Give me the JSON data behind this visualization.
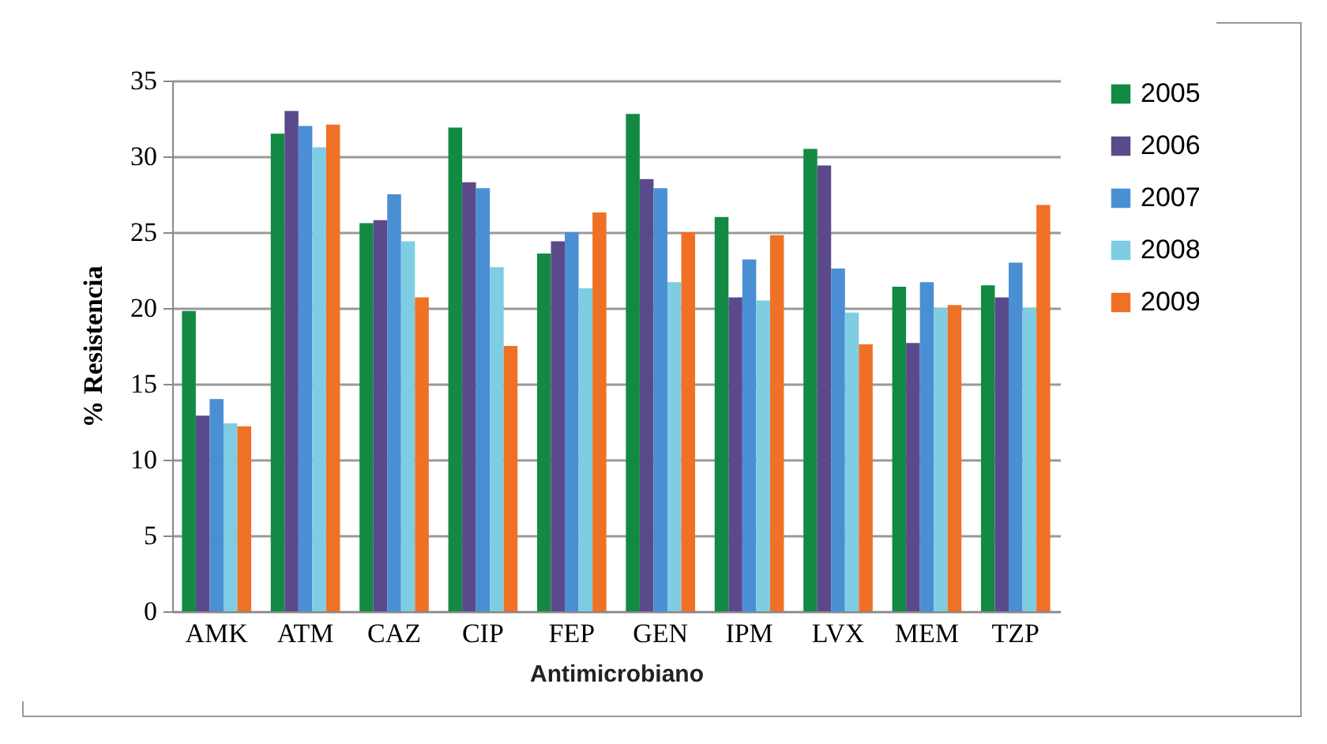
{
  "chart_data": {
    "type": "bar",
    "xlabel": "Antimicrobiano",
    "ylabel": "% Resistencia",
    "categories": [
      "AMK",
      "ATM",
      "CAZ",
      "CIP",
      "FEP",
      "GEN",
      "IPM",
      "LVX",
      "MEM",
      "TZP"
    ],
    "series": [
      {
        "name": "2005",
        "color": "#138a43",
        "values": [
          19.8,
          31.5,
          25.6,
          31.9,
          23.6,
          32.8,
          26.0,
          30.5,
          21.4,
          21.5
        ]
      },
      {
        "name": "2006",
        "color": "#5b4a8b",
        "values": [
          12.9,
          33.0,
          25.8,
          28.3,
          24.4,
          28.5,
          20.7,
          29.4,
          17.7,
          20.7
        ]
      },
      {
        "name": "2007",
        "color": "#4a8fd4",
        "values": [
          14.0,
          32.0,
          27.5,
          27.9,
          25.0,
          27.9,
          23.2,
          22.6,
          21.7,
          23.0
        ]
      },
      {
        "name": "2008",
        "color": "#7fcde3",
        "values": [
          12.4,
          30.6,
          24.4,
          22.7,
          21.3,
          21.7,
          20.5,
          19.7,
          20.0,
          20.0
        ]
      },
      {
        "name": "2009",
        "color": "#ef7125",
        "values": [
          12.2,
          32.1,
          20.7,
          17.5,
          26.3,
          25.0,
          24.8,
          17.6,
          20.2,
          26.8
        ]
      }
    ],
    "ylim": [
      0,
      35
    ],
    "yticks": [
      0,
      5,
      10,
      15,
      20,
      25,
      30,
      35
    ],
    "grid": "y",
    "legend": "right"
  }
}
